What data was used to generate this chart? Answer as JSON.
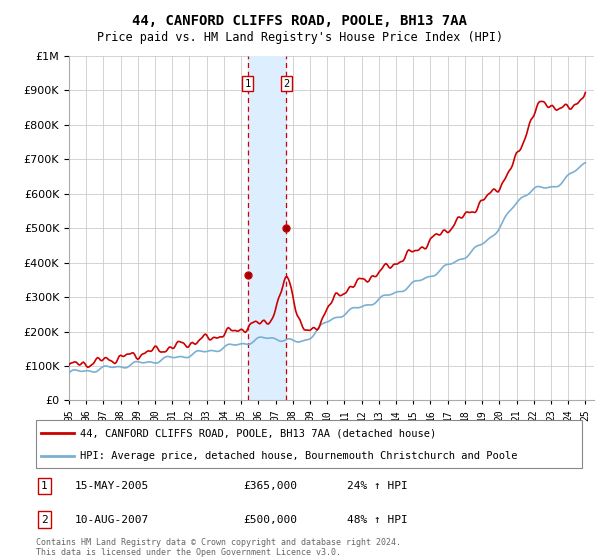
{
  "title": "44, CANFORD CLIFFS ROAD, POOLE, BH13 7AA",
  "subtitle": "Price paid vs. HM Land Registry's House Price Index (HPI)",
  "legend_line1": "44, CANFORD CLIFFS ROAD, POOLE, BH13 7AA (detached house)",
  "legend_line2": "HPI: Average price, detached house, Bournemouth Christchurch and Poole",
  "footnote": "Contains HM Land Registry data © Crown copyright and database right 2024.\nThis data is licensed under the Open Government Licence v3.0.",
  "transaction1_label": "1",
  "transaction1_date": "15-MAY-2005",
  "transaction1_price": "£365,000",
  "transaction1_hpi": "24% ↑ HPI",
  "transaction2_label": "2",
  "transaction2_date": "10-AUG-2007",
  "transaction2_price": "£500,000",
  "transaction2_hpi": "48% ↑ HPI",
  "red_line_color": "#cc0000",
  "blue_line_color": "#7bafd4",
  "vertical_line_color": "#cc0000",
  "shaded_region_color": "#ddeeff",
  "grid_color": "#cccccc",
  "background_color": "#ffffff",
  "ylim": [
    0,
    1000000
  ],
  "yticks": [
    0,
    100000,
    200000,
    300000,
    400000,
    500000,
    600000,
    700000,
    800000,
    900000,
    1000000
  ],
  "transaction1_x": 2005.37,
  "transaction2_x": 2007.62,
  "transaction1_y": 365000,
  "transaction2_y": 500000,
  "xlim_start": 1995.0,
  "xlim_end": 2025.5
}
